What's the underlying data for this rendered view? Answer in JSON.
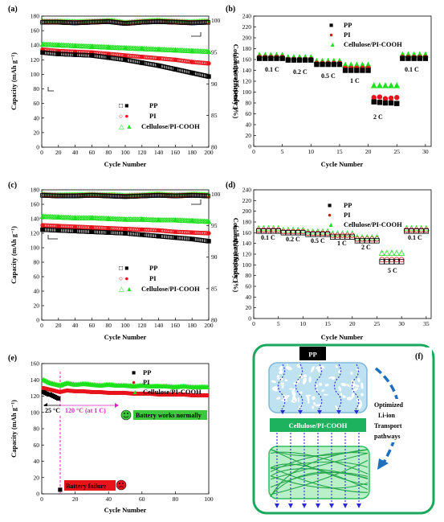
{
  "panels": {
    "a": "(a)",
    "b": "(b)",
    "c": "(c)",
    "d": "(d)",
    "e": "(e)",
    "f": "(f)"
  },
  "colors": {
    "pp": "#000000",
    "pi": "#e8131b",
    "cel": "#1ee01e"
  },
  "chart_data": [
    {
      "id": "a",
      "type": "scatter",
      "xlabel": "Cycle Number",
      "ylabel": "Capacity (mAh g⁻¹)",
      "y2label": "Coulombic efficiency (%)",
      "xlim": [
        0,
        200
      ],
      "ylim": [
        0,
        180
      ],
      "y2lim": [
        80,
        100.7
      ],
      "xticks": [
        0,
        20,
        40,
        60,
        80,
        100,
        120,
        140,
        160,
        180,
        200
      ],
      "yticks": [
        0,
        20,
        40,
        60,
        80,
        100,
        120,
        140,
        160,
        180
      ],
      "y2ticks": [
        80,
        85,
        90,
        95,
        100
      ],
      "legend": [
        "PP",
        "PI",
        "Cellulose/PI-COOH"
      ],
      "capacity": {
        "PP": {
          "x": [
            1,
            20,
            40,
            60,
            80,
            100,
            120,
            140,
            160,
            180,
            200
          ],
          "y": [
            130,
            128,
            127,
            126,
            123,
            120,
            116,
            112,
            107,
            102,
            97
          ]
        },
        "PI": {
          "x": [
            1,
            20,
            40,
            60,
            80,
            100,
            120,
            140,
            160,
            180,
            200
          ],
          "y": [
            134,
            132,
            131,
            130,
            128,
            126,
            124,
            122,
            120,
            117,
            115
          ]
        },
        "Cellulose/PI-COOH": {
          "x": [
            1,
            20,
            40,
            60,
            80,
            100,
            120,
            140,
            160,
            180,
            200
          ],
          "y": [
            141,
            140,
            139,
            138,
            137,
            136,
            135,
            134,
            133,
            132,
            131
          ]
        }
      },
      "efficiency": {
        "x": [
          1,
          20,
          40,
          60,
          80,
          100,
          120,
          140,
          160,
          180,
          200
        ],
        "y": [
          99.8,
          99.8,
          99.7,
          99.8,
          99.9,
          99.6,
          99.8,
          99.9,
          99.8,
          99.7,
          99.8
        ]
      }
    },
    {
      "id": "b",
      "type": "scatter",
      "xlabel": "Cycle Number",
      "ylabel": "Capacity (mAh g⁻¹)",
      "xlim": [
        0,
        31
      ],
      "ylim": [
        0,
        240
      ],
      "xticks": [
        0,
        5,
        10,
        15,
        20,
        25,
        30
      ],
      "yticks": [
        0,
        20,
        40,
        60,
        80,
        100,
        120,
        140,
        160,
        180,
        200,
        220,
        240
      ],
      "legend": [
        "PP",
        "PI",
        "Cellulose/PI-COOH"
      ],
      "rate_labels": [
        "0.1 C",
        "0.2 C",
        "0.5 C",
        "1 C",
        "2 C",
        "0.1 C"
      ],
      "series": [
        {
          "name": "PP",
          "x": [
            1,
            2,
            3,
            4,
            5,
            6,
            7,
            8,
            9,
            10,
            11,
            12,
            13,
            14,
            15,
            16,
            17,
            18,
            19,
            20,
            21,
            22,
            23,
            24,
            25,
            26,
            27,
            28,
            29,
            30
          ],
          "y": [
            162,
            162,
            162,
            162,
            162,
            159,
            159,
            159,
            159,
            159,
            151,
            151,
            151,
            151,
            151,
            140,
            140,
            140,
            140,
            140,
            82,
            81,
            80,
            80,
            79,
            162,
            162,
            162,
            162,
            162
          ]
        },
        {
          "name": "PI",
          "x": [
            1,
            2,
            3,
            4,
            5,
            6,
            7,
            8,
            9,
            10,
            11,
            12,
            13,
            14,
            15,
            16,
            17,
            18,
            19,
            20,
            21,
            22,
            23,
            24,
            25,
            26,
            27,
            28,
            29,
            30
          ],
          "y": [
            164,
            164,
            164,
            164,
            164,
            160,
            160,
            160,
            160,
            160,
            153,
            153,
            153,
            153,
            153,
            144,
            144,
            144,
            144,
            144,
            90,
            91,
            88,
            89,
            90,
            164,
            164,
            164,
            164,
            164
          ]
        },
        {
          "name": "Cellulose/PI-COOH",
          "x": [
            1,
            2,
            3,
            4,
            5,
            6,
            7,
            8,
            9,
            10,
            11,
            12,
            13,
            14,
            15,
            16,
            17,
            18,
            19,
            20,
            21,
            22,
            23,
            24,
            25,
            26,
            27,
            28,
            29,
            30
          ],
          "y": [
            168,
            168,
            168,
            168,
            168,
            164,
            164,
            164,
            164,
            164,
            157,
            157,
            157,
            157,
            157,
            150,
            150,
            150,
            150,
            150,
            112,
            112,
            112,
            112,
            112,
            169,
            169,
            169,
            169,
            169
          ]
        }
      ]
    },
    {
      "id": "c",
      "type": "scatter",
      "xlabel": "Cycle Number",
      "ylabel": "Capacity (mAh g⁻¹)",
      "y2label": "Coulombic efficiency (%)",
      "xlim": [
        0,
        200
      ],
      "ylim": [
        0,
        180
      ],
      "y2lim": [
        80,
        100.7
      ],
      "xticks": [
        0,
        20,
        40,
        60,
        80,
        100,
        120,
        140,
        160,
        180,
        200
      ],
      "yticks": [
        0,
        20,
        40,
        60,
        80,
        100,
        120,
        140,
        160,
        180
      ],
      "y2ticks": [
        80,
        85,
        90,
        95,
        100
      ],
      "legend": [
        "PP",
        "PI",
        "Cellulose/PI-COOH"
      ],
      "capacity": {
        "PP": {
          "x": [
            1,
            20,
            40,
            60,
            80,
            100,
            120,
            140,
            160,
            180,
            200
          ],
          "y": [
            125,
            124,
            123,
            122,
            121,
            120,
            118,
            116,
            114,
            112,
            109
          ]
        },
        "PI": {
          "x": [
            1,
            20,
            40,
            60,
            80,
            100,
            120,
            140,
            160,
            180,
            200
          ],
          "y": [
            131,
            130,
            129,
            128,
            127,
            126,
            125,
            124,
            122,
            121,
            120
          ]
        },
        "Cellulose/PI-COOH": {
          "x": [
            1,
            20,
            40,
            60,
            80,
            100,
            120,
            140,
            160,
            180,
            200
          ],
          "y": [
            143,
            142,
            141,
            141,
            140,
            139,
            139,
            138,
            138,
            137,
            136
          ]
        }
      },
      "efficiency": {
        "x": [
          1,
          20,
          40,
          60,
          80,
          100,
          120,
          140,
          160,
          180,
          200
        ],
        "y": [
          99.9,
          99.8,
          99.8,
          99.9,
          99.8,
          99.7,
          99.8,
          99.9,
          99.8,
          99.9,
          99.8
        ]
      }
    },
    {
      "id": "d",
      "type": "scatter",
      "xlabel": "Cycle Number",
      "ylabel": "Capacity (mAh g⁻¹)",
      "xlim": [
        0,
        36
      ],
      "ylim": [
        0,
        240
      ],
      "xticks": [
        0,
        5,
        10,
        15,
        20,
        25,
        30,
        35
      ],
      "yticks": [
        0,
        20,
        40,
        60,
        80,
        100,
        120,
        140,
        160,
        180,
        200,
        220,
        240
      ],
      "legend": [
        "PP",
        "PI",
        "Cellulose/PI-COOH"
      ],
      "rate_labels": [
        "0.1 C",
        "0.2 C",
        "0.5 C",
        "1 C",
        "2 C",
        "5 C",
        "0.1 C"
      ],
      "series": [
        {
          "name": "PP",
          "x": [
            1,
            2,
            3,
            4,
            5,
            6,
            7,
            8,
            9,
            10,
            11,
            12,
            13,
            14,
            15,
            16,
            17,
            18,
            19,
            20,
            21,
            22,
            23,
            24,
            25,
            26,
            27,
            28,
            29,
            30,
            31,
            32,
            33,
            34,
            35
          ],
          "y": [
            163,
            163,
            163,
            163,
            163,
            160,
            160,
            160,
            160,
            160,
            157,
            157,
            157,
            157,
            157,
            152,
            152,
            152,
            152,
            152,
            145,
            145,
            145,
            145,
            145,
            106,
            106,
            106,
            106,
            106,
            163,
            163,
            163,
            163,
            163
          ]
        },
        {
          "name": "PI",
          "x": [
            1,
            2,
            3,
            4,
            5,
            6,
            7,
            8,
            9,
            10,
            11,
            12,
            13,
            14,
            15,
            16,
            17,
            18,
            19,
            20,
            21,
            22,
            23,
            24,
            25,
            26,
            27,
            28,
            29,
            30,
            31,
            32,
            33,
            34,
            35
          ],
          "y": [
            165,
            165,
            165,
            165,
            165,
            162,
            162,
            162,
            162,
            162,
            159,
            159,
            159,
            159,
            159,
            155,
            155,
            155,
            155,
            155,
            148,
            148,
            148,
            148,
            148,
            110,
            110,
            110,
            110,
            110,
            165,
            165,
            165,
            165,
            165
          ]
        },
        {
          "name": "Cellulose/PI-COOH",
          "x": [
            1,
            2,
            3,
            4,
            5,
            6,
            7,
            8,
            9,
            10,
            11,
            12,
            13,
            14,
            15,
            16,
            17,
            18,
            19,
            20,
            21,
            22,
            23,
            24,
            25,
            26,
            27,
            28,
            29,
            30,
            31,
            32,
            33,
            34,
            35
          ],
          "y": [
            168,
            168,
            168,
            168,
            168,
            165,
            165,
            165,
            165,
            165,
            162,
            162,
            162,
            162,
            162,
            158,
            158,
            158,
            158,
            158,
            151,
            151,
            151,
            151,
            151,
            122,
            122,
            122,
            122,
            122,
            168,
            168,
            168,
            168,
            168
          ]
        }
      ]
    },
    {
      "id": "e",
      "type": "scatter",
      "xlabel": "Cycle Number",
      "ylabel": "Capacity (mAh g⁻¹)",
      "xlim": [
        0,
        100
      ],
      "ylim": [
        0,
        160
      ],
      "xticks": [
        0,
        20,
        40,
        60,
        80,
        100
      ],
      "yticks": [
        0,
        20,
        40,
        60,
        80,
        100,
        120,
        140,
        160
      ],
      "legend": [
        "PP",
        "PI",
        "Cellulose/PI-COOH"
      ],
      "temp_labels": [
        "25 °C",
        "120 °C (at 1 C)"
      ],
      "status_labels": [
        "Battery works normally",
        "Battery failure"
      ],
      "series": [
        {
          "name": "PP",
          "x": [
            1,
            2,
            3,
            4,
            5,
            6,
            7,
            8,
            9,
            10,
            11
          ],
          "y": [
            125,
            124,
            123,
            122,
            122,
            121,
            120,
            119,
            118,
            117,
            5
          ]
        },
        {
          "name": "PI",
          "x": [
            1,
            3,
            5,
            7,
            9,
            11,
            15,
            20,
            25,
            30,
            35,
            40,
            45,
            50,
            55,
            60,
            65,
            70,
            75,
            80,
            85,
            90,
            95,
            100
          ],
          "y": [
            130,
            129,
            128,
            127,
            126,
            125,
            127,
            126,
            126,
            125,
            125,
            124,
            124,
            124,
            123,
            123,
            123,
            122,
            122,
            122,
            122,
            121,
            121,
            121
          ]
        },
        {
          "name": "Cellulose/PI-COOH",
          "x": [
            1,
            3,
            5,
            7,
            9,
            11,
            15,
            20,
            25,
            30,
            35,
            40,
            45,
            50,
            55,
            60,
            65,
            70,
            75,
            80,
            85,
            90,
            95,
            100
          ],
          "y": [
            140,
            138,
            136,
            135,
            134,
            133,
            136,
            134,
            135,
            134,
            133,
            134,
            133,
            133,
            132,
            133,
            132,
            132,
            132,
            131,
            132,
            131,
            131,
            131
          ]
        }
      ]
    }
  ],
  "schematic": {
    "top_label": "PP",
    "bottom_label": "Cellulose/PI-COOH",
    "arrow_text": [
      "Optimized",
      "Li-ion",
      "Transport",
      "pathways"
    ]
  }
}
